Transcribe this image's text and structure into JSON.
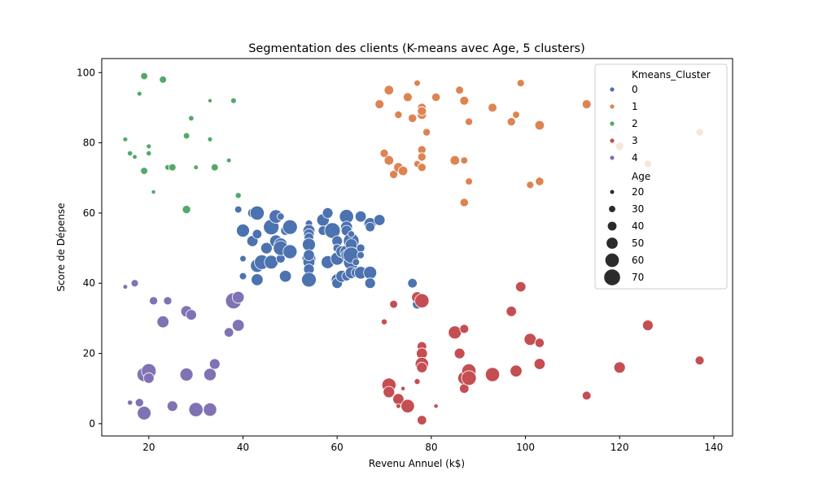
{
  "chart_data": {
    "type": "scatter",
    "title": "Segmentation des clients (K-means avec Age, 5 clusters)",
    "xlabel": "Revenu Annuel (k$)",
    "ylabel": "Score de Dépense",
    "xlim": [
      10,
      144
    ],
    "ylim": [
      -3.5,
      104
    ],
    "xticks": [
      20,
      40,
      60,
      80,
      100,
      120,
      140
    ],
    "yticks": [
      0,
      20,
      40,
      60,
      80,
      100
    ],
    "grid": false,
    "legend_placement": "top-right",
    "hue_title": "Kmeans_Cluster",
    "size_title": "Age",
    "size_legend": [
      20,
      30,
      40,
      50,
      60,
      70
    ],
    "age_range": [
      18,
      70
    ],
    "series": [
      {
        "label": "0",
        "color": "#4c72b0",
        "points": [
          [
            39,
            61,
            30
          ],
          [
            40,
            55,
            55
          ],
          [
            40,
            47,
            27
          ],
          [
            40,
            42,
            30
          ],
          [
            42,
            52,
            47
          ],
          [
            42,
            60,
            40
          ],
          [
            43,
            60,
            60
          ],
          [
            43,
            54,
            40
          ],
          [
            43,
            45,
            56
          ],
          [
            43,
            41,
            50
          ],
          [
            44,
            46,
            62
          ],
          [
            45,
            50,
            48
          ],
          [
            46,
            46,
            58
          ],
          [
            46,
            56,
            65
          ],
          [
            47,
            59,
            57
          ],
          [
            47,
            52,
            52
          ],
          [
            48,
            51,
            56
          ],
          [
            48,
            47,
            38
          ],
          [
            48,
            59,
            30
          ],
          [
            48,
            50,
            62
          ],
          [
            49,
            42,
            50
          ],
          [
            49,
            55,
            40
          ],
          [
            50,
            49,
            59
          ],
          [
            50,
            56,
            62
          ],
          [
            54,
            57,
            30
          ],
          [
            54,
            55,
            50
          ],
          [
            54,
            54,
            45
          ],
          [
            54,
            53,
            40
          ],
          [
            54,
            51,
            55
          ],
          [
            54,
            47,
            58
          ],
          [
            54,
            46,
            50
          ],
          [
            54,
            44,
            45
          ],
          [
            54,
            41,
            62
          ],
          [
            54,
            48,
            47
          ],
          [
            57,
            58,
            52
          ],
          [
            57,
            55,
            40
          ],
          [
            58,
            60,
            45
          ],
          [
            58,
            46,
            55
          ],
          [
            59,
            55,
            66
          ],
          [
            60,
            52,
            45
          ],
          [
            60,
            50,
            35
          ],
          [
            60,
            47,
            55
          ],
          [
            60,
            41,
            50
          ],
          [
            60,
            40,
            45
          ],
          [
            61,
            49,
            50
          ],
          [
            61,
            42,
            50
          ],
          [
            62,
            59,
            60
          ],
          [
            62,
            56,
            50
          ],
          [
            62,
            55,
            45
          ],
          [
            62,
            49,
            55
          ],
          [
            62,
            48,
            47
          ],
          [
            62,
            42,
            40
          ],
          [
            63,
            52,
            66
          ],
          [
            63,
            54,
            28
          ],
          [
            63,
            51,
            50
          ],
          [
            63,
            46,
            65
          ],
          [
            63,
            43,
            50
          ],
          [
            63,
            48,
            68
          ],
          [
            64,
            46,
            30
          ],
          [
            64,
            43,
            40
          ],
          [
            65,
            59,
            47
          ],
          [
            65,
            50,
            35
          ],
          [
            65,
            48,
            30
          ],
          [
            65,
            43,
            53
          ],
          [
            67,
            43,
            55
          ],
          [
            67,
            40,
            45
          ],
          [
            67,
            57,
            50
          ],
          [
            67,
            56,
            40
          ],
          [
            69,
            58,
            47
          ],
          [
            76,
            40,
            40
          ],
          [
            77,
            34,
            40
          ]
        ]
      },
      {
        "label": "1",
        "color": "#dd8452",
        "points": [
          [
            69,
            91,
            38
          ],
          [
            70,
            77,
            35
          ],
          [
            71,
            95,
            40
          ],
          [
            71,
            75,
            40
          ],
          [
            72,
            71,
            35
          ],
          [
            73,
            88,
            32
          ],
          [
            73,
            73,
            40
          ],
          [
            74,
            72,
            40
          ],
          [
            75,
            93,
            38
          ],
          [
            76,
            87,
            36
          ],
          [
            77,
            97,
            27
          ],
          [
            77,
            74,
            28
          ],
          [
            78,
            90,
            37
          ],
          [
            78,
            88,
            39
          ],
          [
            78,
            89,
            38
          ],
          [
            78,
            78,
            35
          ],
          [
            78,
            76,
            35
          ],
          [
            78,
            73,
            35
          ],
          [
            79,
            83,
            32
          ],
          [
            81,
            93,
            36
          ],
          [
            85,
            75,
            40
          ],
          [
            86,
            95,
            34
          ],
          [
            87,
            92,
            38
          ],
          [
            87,
            75,
            30
          ],
          [
            87,
            63,
            36
          ],
          [
            88,
            86,
            32
          ],
          [
            88,
            69,
            30
          ],
          [
            93,
            90,
            37
          ],
          [
            97,
            86,
            35
          ],
          [
            98,
            88,
            30
          ],
          [
            99,
            97,
            31
          ],
          [
            101,
            68,
            31
          ],
          [
            103,
            85,
            40
          ],
          [
            103,
            69,
            36
          ],
          [
            113,
            91,
            38
          ],
          [
            120,
            79,
            35
          ],
          [
            126,
            74,
            32
          ],
          [
            137,
            83,
            32
          ]
        ]
      },
      {
        "label": "2",
        "color": "#55a868",
        "points": [
          [
            15,
            81,
            21
          ],
          [
            16,
            77,
            22
          ],
          [
            17,
            76,
            20
          ],
          [
            18,
            94,
            21
          ],
          [
            19,
            72,
            30
          ],
          [
            19,
            99,
            30
          ],
          [
            20,
            77,
            22
          ],
          [
            20,
            79,
            21
          ],
          [
            21,
            66,
            19
          ],
          [
            23,
            98,
            30
          ],
          [
            24,
            73,
            24
          ],
          [
            25,
            73,
            30
          ],
          [
            28,
            82,
            27
          ],
          [
            28,
            61,
            35
          ],
          [
            29,
            87,
            23
          ],
          [
            30,
            73,
            20
          ],
          [
            33,
            92,
            18
          ],
          [
            33,
            81,
            21
          ],
          [
            34,
            73,
            30
          ],
          [
            37,
            75,
            20
          ],
          [
            38,
            92,
            24
          ],
          [
            39,
            65,
            25
          ]
        ]
      },
      {
        "label": "3",
        "color": "#c44e52",
        "points": [
          [
            70,
            29,
            25
          ],
          [
            71,
            11,
            59
          ],
          [
            71,
            9,
            48
          ],
          [
            72,
            34,
            34
          ],
          [
            73,
            7,
            47
          ],
          [
            73,
            5,
            20
          ],
          [
            74,
            10,
            19
          ],
          [
            75,
            5,
            57
          ],
          [
            77,
            36,
            47
          ],
          [
            77,
            12,
            25
          ],
          [
            78,
            35,
            60
          ],
          [
            78,
            22,
            40
          ],
          [
            78,
            20,
            47
          ],
          [
            78,
            17,
            56
          ],
          [
            78,
            16,
            45
          ],
          [
            78,
            1,
            40
          ],
          [
            81,
            5,
            19
          ],
          [
            85,
            26,
            55
          ],
          [
            86,
            20,
            45
          ],
          [
            87,
            27,
            38
          ],
          [
            87,
            13,
            54
          ],
          [
            87,
            10,
            40
          ],
          [
            88,
            15,
            60
          ],
          [
            88,
            13,
            62
          ],
          [
            93,
            14,
            60
          ],
          [
            97,
            32,
            43
          ],
          [
            98,
            15,
            50
          ],
          [
            99,
            39,
            43
          ],
          [
            101,
            24,
            51
          ],
          [
            103,
            23,
            39
          ],
          [
            103,
            17,
            47
          ],
          [
            113,
            8,
            37
          ],
          [
            120,
            16,
            48
          ],
          [
            126,
            28,
            45
          ],
          [
            137,
            18,
            38
          ]
        ]
      },
      {
        "label": "4",
        "color": "#8172b3",
        "points": [
          [
            15,
            39,
            20
          ],
          [
            16,
            6,
            22
          ],
          [
            17,
            40,
            31
          ],
          [
            18,
            6,
            35
          ],
          [
            19,
            14,
            60
          ],
          [
            19,
            3,
            58
          ],
          [
            20,
            15,
            62
          ],
          [
            20,
            13,
            45
          ],
          [
            21,
            35,
            35
          ],
          [
            23,
            29,
            50
          ],
          [
            24,
            35,
            35
          ],
          [
            25,
            5,
            45
          ],
          [
            28,
            32,
            48
          ],
          [
            28,
            14,
            55
          ],
          [
            29,
            31,
            45
          ],
          [
            30,
            4,
            60
          ],
          [
            33,
            14,
            52
          ],
          [
            33,
            4,
            56
          ],
          [
            34,
            17,
            45
          ],
          [
            37,
            26,
            40
          ],
          [
            38,
            35,
            67
          ],
          [
            39,
            36,
            50
          ],
          [
            39,
            28,
            50
          ]
        ]
      }
    ]
  }
}
